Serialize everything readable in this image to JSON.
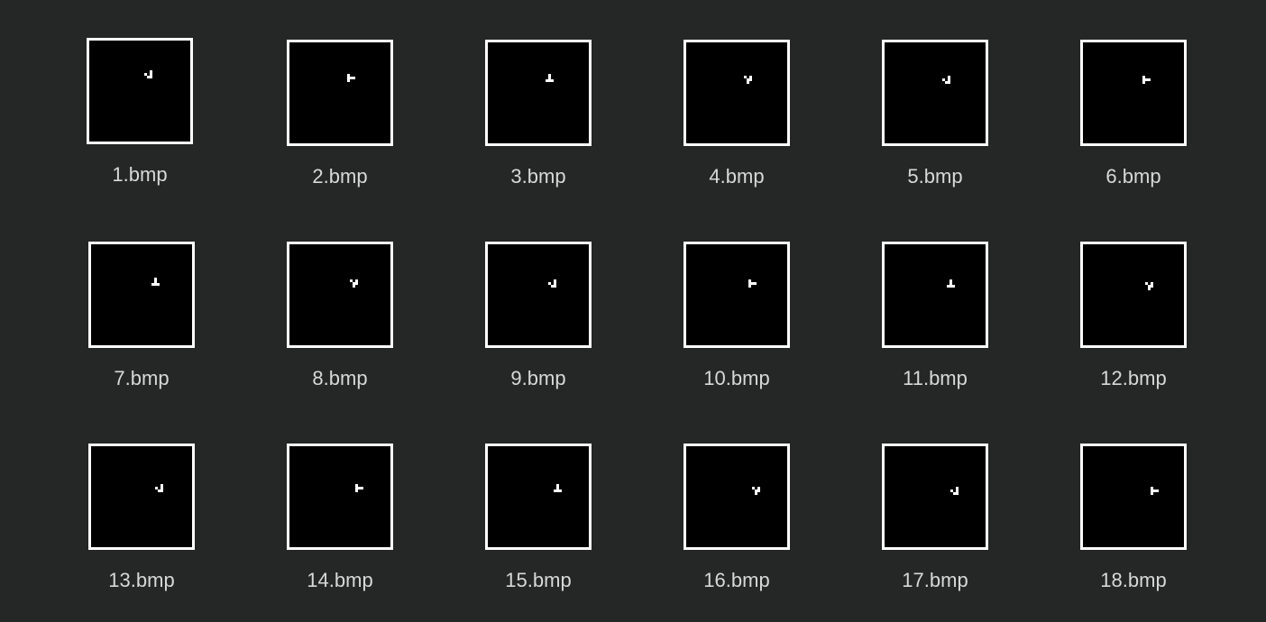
{
  "files": [
    {
      "name": "1.bmp",
      "icon": "glider-bitmap-icon"
    },
    {
      "name": "2.bmp",
      "icon": "glider-bitmap-icon"
    },
    {
      "name": "3.bmp",
      "icon": "glider-bitmap-icon"
    },
    {
      "name": "4.bmp",
      "icon": "glider-bitmap-icon"
    },
    {
      "name": "5.bmp",
      "icon": "glider-bitmap-icon"
    },
    {
      "name": "6.bmp",
      "icon": "glider-bitmap-icon"
    },
    {
      "name": "7.bmp",
      "icon": "glider-bitmap-icon"
    },
    {
      "name": "8.bmp",
      "icon": "glider-bitmap-icon"
    },
    {
      "name": "9.bmp",
      "icon": "glider-bitmap-icon"
    },
    {
      "name": "10.bmp",
      "icon": "glider-bitmap-icon"
    },
    {
      "name": "11.bmp",
      "icon": "glider-bitmap-icon"
    },
    {
      "name": "12.bmp",
      "icon": "glider-bitmap-icon"
    },
    {
      "name": "13.bmp",
      "icon": "glider-bitmap-icon"
    },
    {
      "name": "14.bmp",
      "icon": "glider-bitmap-icon"
    },
    {
      "name": "15.bmp",
      "icon": "glider-bitmap-icon"
    },
    {
      "name": "16.bmp",
      "icon": "glider-bitmap-icon"
    },
    {
      "name": "17.bmp",
      "icon": "glider-bitmap-icon"
    },
    {
      "name": "18.bmp",
      "icon": "glider-bitmap-icon"
    }
  ],
  "colors": {
    "background": "#252626",
    "thumbnail_fill": "#000000",
    "thumbnail_border": "#ffffff",
    "label_text": "#d8d8d8"
  }
}
